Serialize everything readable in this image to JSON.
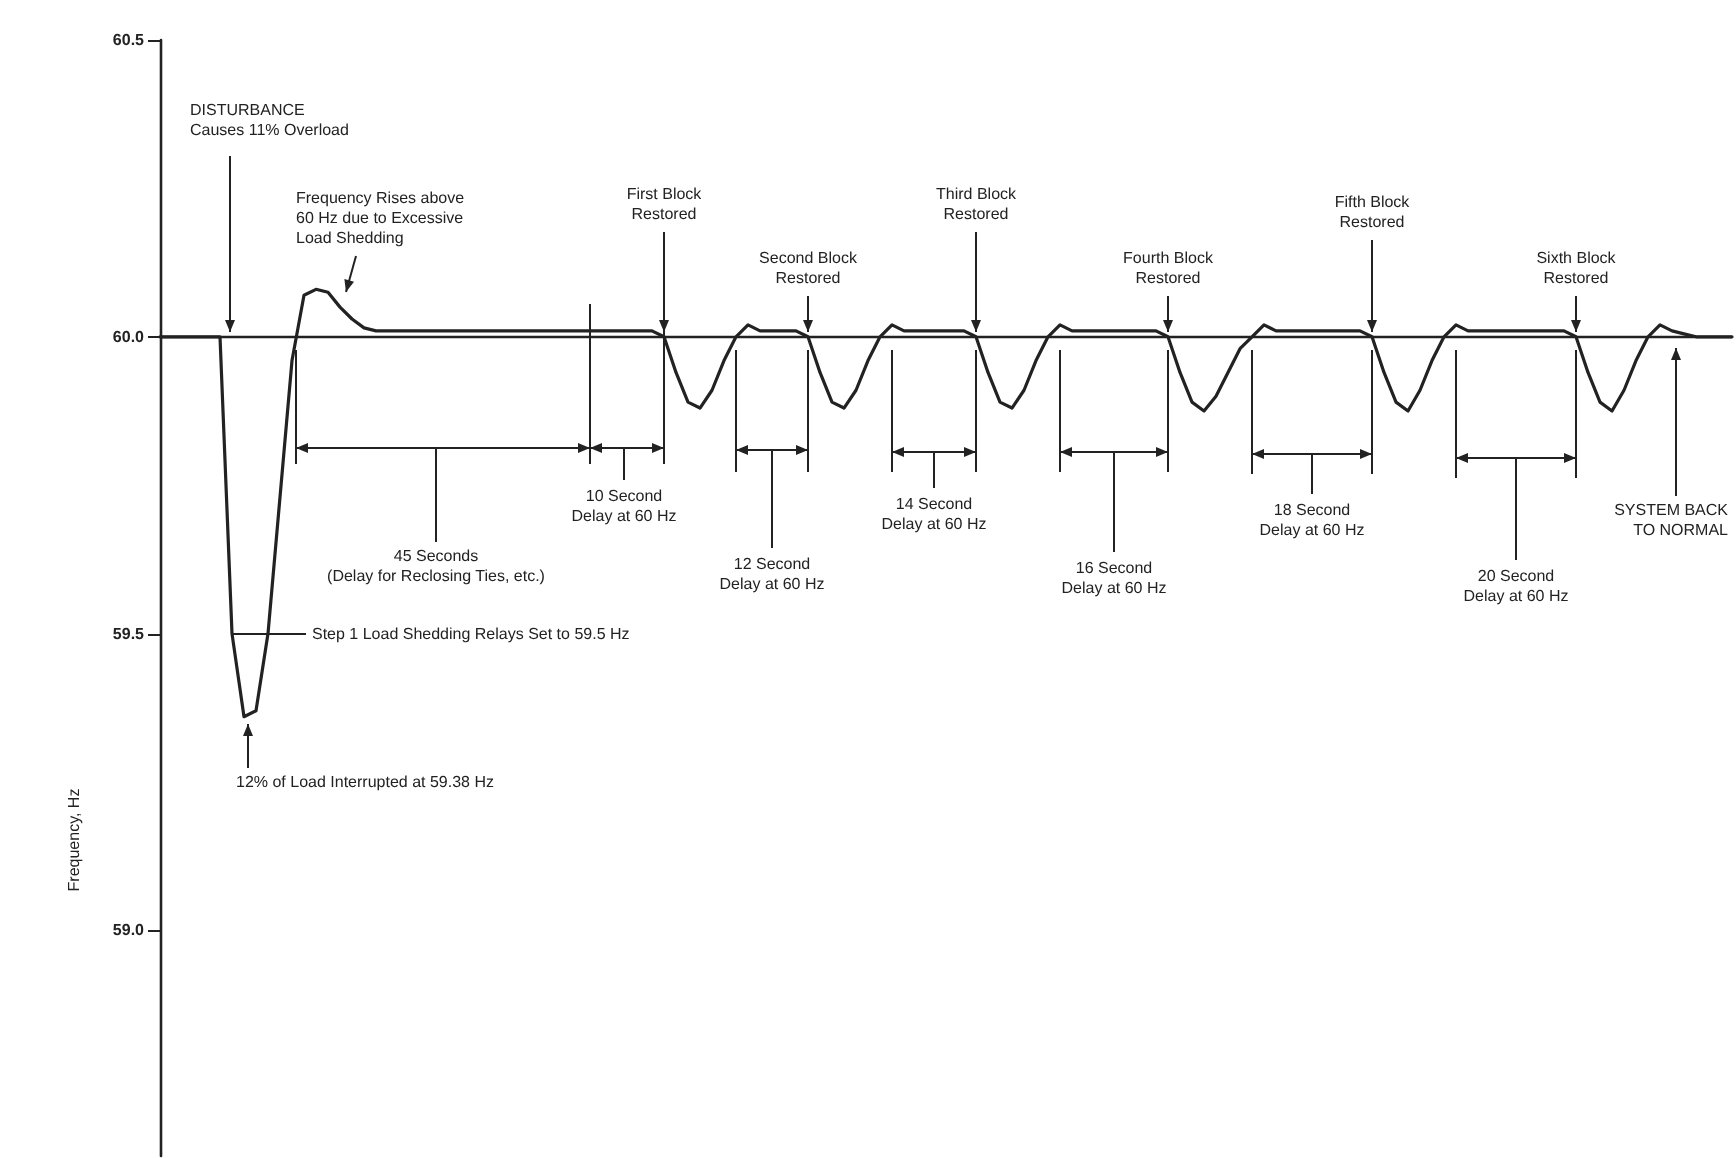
{
  "chart_data": {
    "type": "line",
    "ylabel": "Frequency, Hz",
    "categories": [
      null,
      null,
      null,
      null,
      null,
      null,
      null,
      null,
      null,
      null,
      null,
      null,
      null,
      null,
      null,
      null,
      null,
      null,
      null,
      null,
      null,
      null,
      null,
      null,
      null,
      null,
      null,
      null,
      null,
      null,
      null,
      null,
      null,
      null,
      null,
      null,
      null,
      null,
      null,
      null,
      null,
      null,
      null,
      null,
      null,
      null,
      null,
      null,
      null,
      null,
      null,
      null,
      null,
      null,
      null,
      null,
      null,
      null,
      null,
      null,
      null,
      null,
      null,
      null,
      null,
      null,
      null,
      null,
      null,
      null,
      null,
      null,
      null,
      null,
      null,
      null,
      null,
      null,
      null,
      null,
      null,
      null,
      null,
      null,
      null,
      null,
      null,
      null,
      null,
      null,
      null,
      null,
      null,
      null,
      null,
      null,
      null,
      null,
      null,
      null,
      null,
      null,
      null,
      null,
      null,
      null,
      null,
      null,
      null,
      null,
      null,
      null,
      null,
      null,
      null,
      null,
      null,
      null,
      null,
      null,
      null,
      null,
      null,
      null,
      null,
      null,
      null,
      null,
      null,
      null,
      null,
      null
    ],
    "series": [
      {
        "color": "#222222",
        "values": [
          60.0,
          60.0,
          60.0,
          60.0,
          60.0,
          60.0,
          59.5,
          59.36,
          59.37,
          59.5,
          59.73,
          59.96,
          60.07,
          60.08,
          60.075,
          60.05,
          60.03,
          60.015,
          60.01,
          60.01,
          60.01,
          60.01,
          60.01,
          60.01,
          60.01,
          60.01,
          60.01,
          60.01,
          60.01,
          60.01,
          60.01,
          60.01,
          60.01,
          60.01,
          60.01,
          60.01,
          60.01,
          60.01,
          60.01,
          60.01,
          60.01,
          60.01,
          60.0,
          59.94,
          59.89,
          59.88,
          59.91,
          59.96,
          60.0,
          60.02,
          60.01,
          60.01,
          60.01,
          60.01,
          60.0,
          59.94,
          59.89,
          59.88,
          59.91,
          59.96,
          60.0,
          60.02,
          60.01,
          60.01,
          60.01,
          60.01,
          60.01,
          60.01,
          60.0,
          59.94,
          59.89,
          59.88,
          59.91,
          59.96,
          60.0,
          60.02,
          60.01,
          60.01,
          60.01,
          60.01,
          60.01,
          60.01,
          60.01,
          60.01,
          60.0,
          59.94,
          59.89,
          59.875,
          59.9,
          59.94,
          59.98,
          60.0,
          60.02,
          60.01,
          60.01,
          60.01,
          60.01,
          60.01,
          60.01,
          60.01,
          60.01,
          60.0,
          59.94,
          59.89,
          59.875,
          59.91,
          59.96,
          60.0,
          60.02,
          60.01,
          60.01,
          60.01,
          60.01,
          60.01,
          60.01,
          60.01,
          60.01,
          60.01,
          60.0,
          59.94,
          59.89,
          59.875,
          59.91,
          59.96,
          60.0,
          60.02,
          60.01,
          60.005,
          60.0,
          60.0,
          60.0,
          60.0
        ]
      }
    ],
    "ylim": [
      58.62,
      60.5
    ],
    "yticks": [
      {
        "value": 59.0,
        "label": "59.0"
      },
      {
        "value": 59.5,
        "label": "59.5"
      },
      {
        "value": 60.0,
        "label": "60.0"
      },
      {
        "value": 60.5,
        "label": "60.5"
      }
    ],
    "tick_labels": "y",
    "ref_lines": [
      {
        "axis": "y",
        "value": 60.0,
        "color": "#222222"
      }
    ],
    "annotations": [
      "DISTURBANCE\nCauses 11% Overload",
      "Frequency Rises above\n60 Hz due to Excessive\nLoad Shedding",
      "First Block\nRestored",
      "Second Block\nRestored",
      "Third Block\nRestored",
      "Fourth Block\nRestored",
      "Fifth Block\nRestored",
      "Sixth Block\nRestored",
      "45 Seconds\n(Delay for Reclosing Ties, etc.)",
      "10 Second\nDelay at 60 Hz",
      "12 Second\nDelay at 60 Hz",
      "14 Second\nDelay at 60 Hz",
      "16 Second\nDelay at 60 Hz",
      "18 Second\nDelay at 60 Hz",
      "20 Second\nDelay at 60 Hz",
      "SYSTEM BACK\nTO NORMAL",
      "Step 1 Load Shedding Relays Set to 59.5 Hz",
      "12% of Load Interrupted at 59.38 Hz"
    ]
  }
}
